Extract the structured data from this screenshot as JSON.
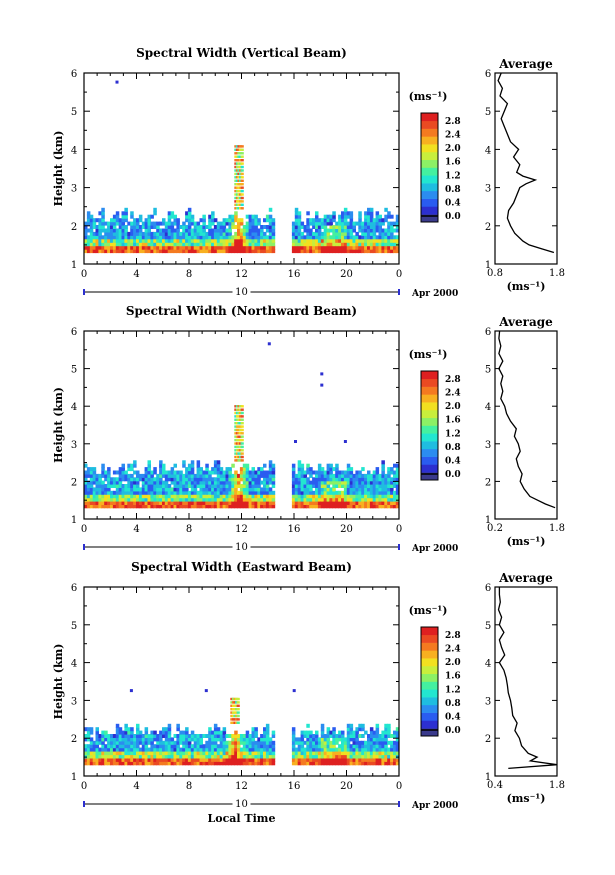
{
  "chart_data": [
    {
      "type": "heatmap",
      "title": "Spectral Width (Vertical Beam)",
      "ylabel": "Height (km)",
      "xticks": [
        "0",
        "4",
        "8",
        "12",
        "16",
        "20",
        "0"
      ],
      "yticks": [
        "1",
        "2",
        "3",
        "4",
        "5",
        "6"
      ],
      "xlim": [
        0,
        24
      ],
      "ylim": [
        1,
        6
      ],
      "gaps": [
        [
          14.5,
          15.8
        ]
      ],
      "date_number": "10",
      "date_label": "Apr 2000",
      "colorbar": {
        "unit": "(ms⁻¹)",
        "min": 0,
        "max": 3.0,
        "ticks": [
          "0.0",
          "0.4",
          "0.8",
          "1.2",
          "1.6",
          "2.0",
          "2.4",
          "2.8"
        ]
      },
      "base_top_km": 2.4,
      "plume": {
        "x": 11.7,
        "top": 4.05
      },
      "outliers": [
        [
          2.4,
          5.8
        ]
      ],
      "average": {
        "title": "Average",
        "xticks": [
          "0.8",
          "1.8"
        ],
        "xlabel": "(ms⁻¹)",
        "xlim": [
          0.8,
          1.8
        ],
        "heights": [
          1.3,
          1.4,
          1.5,
          1.6,
          1.8,
          2.0,
          2.2,
          2.4,
          2.6,
          2.8,
          3.0,
          3.1,
          3.2,
          3.3,
          3.4,
          3.6,
          3.8,
          4.0,
          4.2,
          4.4,
          4.6,
          4.8,
          5.0,
          5.2,
          5.4,
          5.6,
          5.8,
          6.0
        ],
        "values": [
          1.75,
          1.55,
          1.35,
          1.25,
          1.12,
          1.05,
          1.0,
          1.02,
          1.1,
          1.15,
          1.2,
          1.3,
          1.45,
          1.25,
          1.15,
          1.2,
          1.1,
          1.18,
          1.05,
          1.0,
          0.95,
          0.9,
          0.95,
          1.0,
          0.88,
          0.92,
          0.85,
          0.9
        ]
      }
    },
    {
      "type": "heatmap",
      "title": "Spectral Width (Northward Beam)",
      "ylabel": "Height (km)",
      "xticks": [
        "0",
        "4",
        "8",
        "12",
        "16",
        "20",
        "0"
      ],
      "yticks": [
        "1",
        "2",
        "3",
        "4",
        "5",
        "6"
      ],
      "xlim": [
        0,
        24
      ],
      "ylim": [
        1,
        6
      ],
      "gaps": [
        [
          14.5,
          15.8
        ]
      ],
      "date_number": "10",
      "date_label": "Apr 2000",
      "colorbar": {
        "unit": "(ms⁻¹)",
        "min": 0,
        "max": 3.0,
        "ticks": [
          "0.0",
          "0.4",
          "0.8",
          "1.2",
          "1.6",
          "2.0",
          "2.4",
          "2.8"
        ]
      },
      "base_top_km": 2.5,
      "plume": {
        "x": 11.7,
        "top": 3.95
      },
      "outliers": [
        [
          14.0,
          5.7
        ],
        [
          18.0,
          4.9
        ],
        [
          18.0,
          4.6
        ],
        [
          16.0,
          3.1
        ],
        [
          19.8,
          3.1
        ]
      ],
      "average": {
        "title": "Average",
        "xticks": [
          "0.2",
          "1.8"
        ],
        "xlabel": "(ms⁻¹)",
        "xlim": [
          0.2,
          1.8
        ],
        "heights": [
          1.3,
          1.4,
          1.5,
          1.6,
          1.8,
          2.0,
          2.2,
          2.4,
          2.6,
          2.8,
          3.0,
          3.2,
          3.4,
          3.6,
          3.8,
          4.0,
          4.2,
          4.4,
          4.6,
          4.8,
          5.0,
          5.2,
          5.4,
          5.6,
          5.8,
          6.0
        ],
        "values": [
          1.75,
          1.5,
          1.3,
          1.1,
          0.95,
          0.85,
          0.9,
          0.8,
          0.75,
          0.85,
          0.8,
          0.7,
          0.75,
          0.6,
          0.5,
          0.45,
          0.35,
          0.4,
          0.35,
          0.4,
          0.3,
          0.4,
          0.3,
          0.35,
          0.3,
          0.32
        ]
      }
    },
    {
      "type": "heatmap",
      "title": "Spectral Width (Eastward Beam)",
      "ylabel": "Height (km)",
      "xlabel": "Local Time",
      "xticks": [
        "0",
        "4",
        "8",
        "12",
        "16",
        "20",
        "0"
      ],
      "yticks": [
        "1",
        "2",
        "3",
        "4",
        "5",
        "6"
      ],
      "xlim": [
        0,
        24
      ],
      "ylim": [
        1,
        6
      ],
      "gaps": [
        [
          14.5,
          15.8
        ]
      ],
      "date_number": "10",
      "date_label": "Apr 2000",
      "colorbar": {
        "unit": "(ms⁻¹)",
        "min": 0,
        "max": 3.0,
        "ticks": [
          "0.0",
          "0.4",
          "0.8",
          "1.2",
          "1.6",
          "2.0",
          "2.4",
          "2.8"
        ]
      },
      "base_top_km": 2.35,
      "plume": {
        "x": 11.4,
        "top": 3.05
      },
      "outliers": [
        [
          3.5,
          3.3
        ],
        [
          9.2,
          3.3
        ],
        [
          15.9,
          3.3
        ]
      ],
      "average": {
        "title": "Average",
        "xticks": [
          "0.4",
          "1.8"
        ],
        "xlabel": "(ms⁻¹)",
        "xlim": [
          0.4,
          1.8
        ],
        "heights": [
          1.2,
          1.3,
          1.4,
          1.5,
          1.6,
          1.8,
          2.0,
          2.2,
          2.4,
          2.6,
          2.8,
          3.0,
          3.2,
          3.4,
          3.6,
          3.8,
          4.0,
          4.2,
          4.4,
          4.6,
          4.8,
          5.0,
          5.2,
          5.4,
          5.6,
          5.8,
          6.0
        ],
        "values": [
          0.7,
          1.8,
          1.2,
          1.35,
          1.15,
          1.0,
          0.95,
          0.85,
          0.9,
          0.8,
          0.78,
          0.75,
          0.7,
          0.68,
          0.65,
          0.6,
          0.5,
          0.62,
          0.55,
          0.5,
          0.6,
          0.5,
          0.55,
          0.48,
          0.52,
          0.5,
          0.5
        ]
      }
    }
  ]
}
